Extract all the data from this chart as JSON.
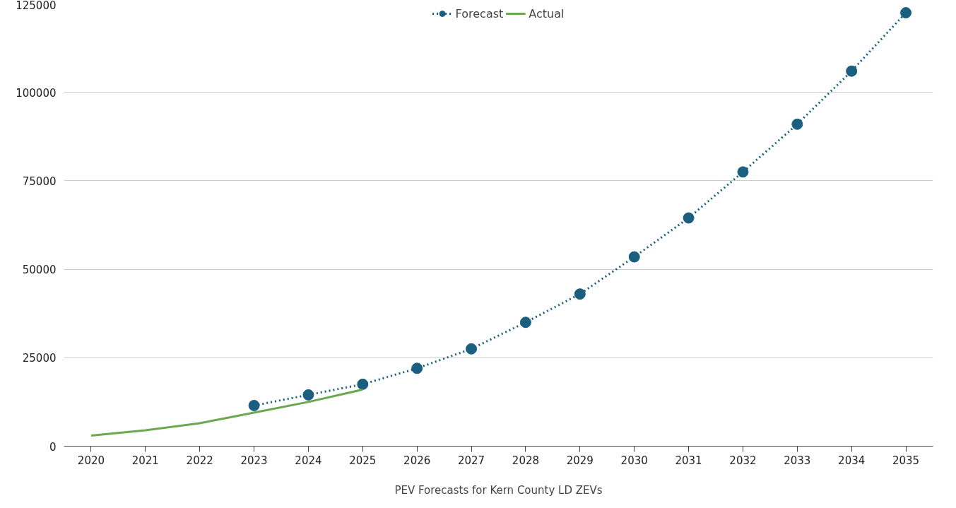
{
  "chart_data": {
    "type": "line",
    "xlabel": "PEV Forecasts for Kern County LD ZEVs",
    "categories": [
      "2020",
      "2021",
      "2022",
      "2023",
      "2024",
      "2025",
      "2026",
      "2027",
      "2028",
      "2029",
      "2030",
      "2031",
      "2032",
      "2033",
      "2034",
      "2035"
    ],
    "series": [
      {
        "name": "Forecast",
        "color": "#1a5e80",
        "marker": "circle",
        "line_style": "dotted",
        "values": [
          null,
          null,
          null,
          11500,
          14500,
          17500,
          22000,
          27500,
          35000,
          43000,
          53500,
          64500,
          77500,
          91000,
          106000,
          122500
        ]
      },
      {
        "name": "Actual",
        "color": "#6aa84f",
        "marker": "none",
        "line_style": "solid",
        "values": [
          3000,
          4500,
          6500,
          9500,
          12500,
          16000,
          null,
          null,
          null,
          null,
          null,
          null,
          null,
          null,
          null,
          null
        ]
      }
    ],
    "ylim": [
      0,
      125000
    ],
    "yticks": [
      0,
      25000,
      50000,
      75000,
      100000,
      125000
    ],
    "grid": "y",
    "legend": "top"
  }
}
